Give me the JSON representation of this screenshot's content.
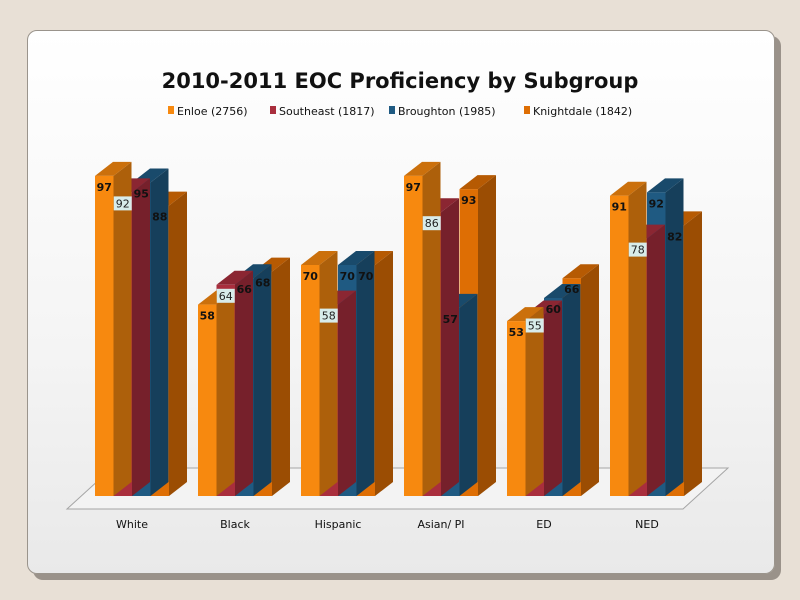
{
  "chart_data": {
    "type": "bar",
    "title": "2010-2011 EOC Proficiency by Subgroup",
    "categories": [
      "White",
      "Black",
      "Hispanic",
      "Asian/ PI",
      "ED",
      "NED"
    ],
    "series": [
      {
        "name": "Enloe (2756)",
        "values": [
          97,
          58,
          70,
          97,
          53,
          91
        ],
        "color": "#f7890f"
      },
      {
        "name": "Southeast (1817)",
        "values": [
          92,
          64,
          58,
          86,
          55,
          78
        ],
        "color": "#a92e3d"
      },
      {
        "name": "Broughton (1985)",
        "values": [
          95,
          66,
          70,
          57,
          60,
          92
        ],
        "color": "#1f5a82"
      },
      {
        "name": "Knightdale (1842)",
        "values": [
          88,
          68,
          70,
          93,
          66,
          82
        ],
        "color": "#de6e04"
      }
    ],
    "ylim": [
      0,
      100
    ],
    "legend_position": "top",
    "grid": false
  }
}
